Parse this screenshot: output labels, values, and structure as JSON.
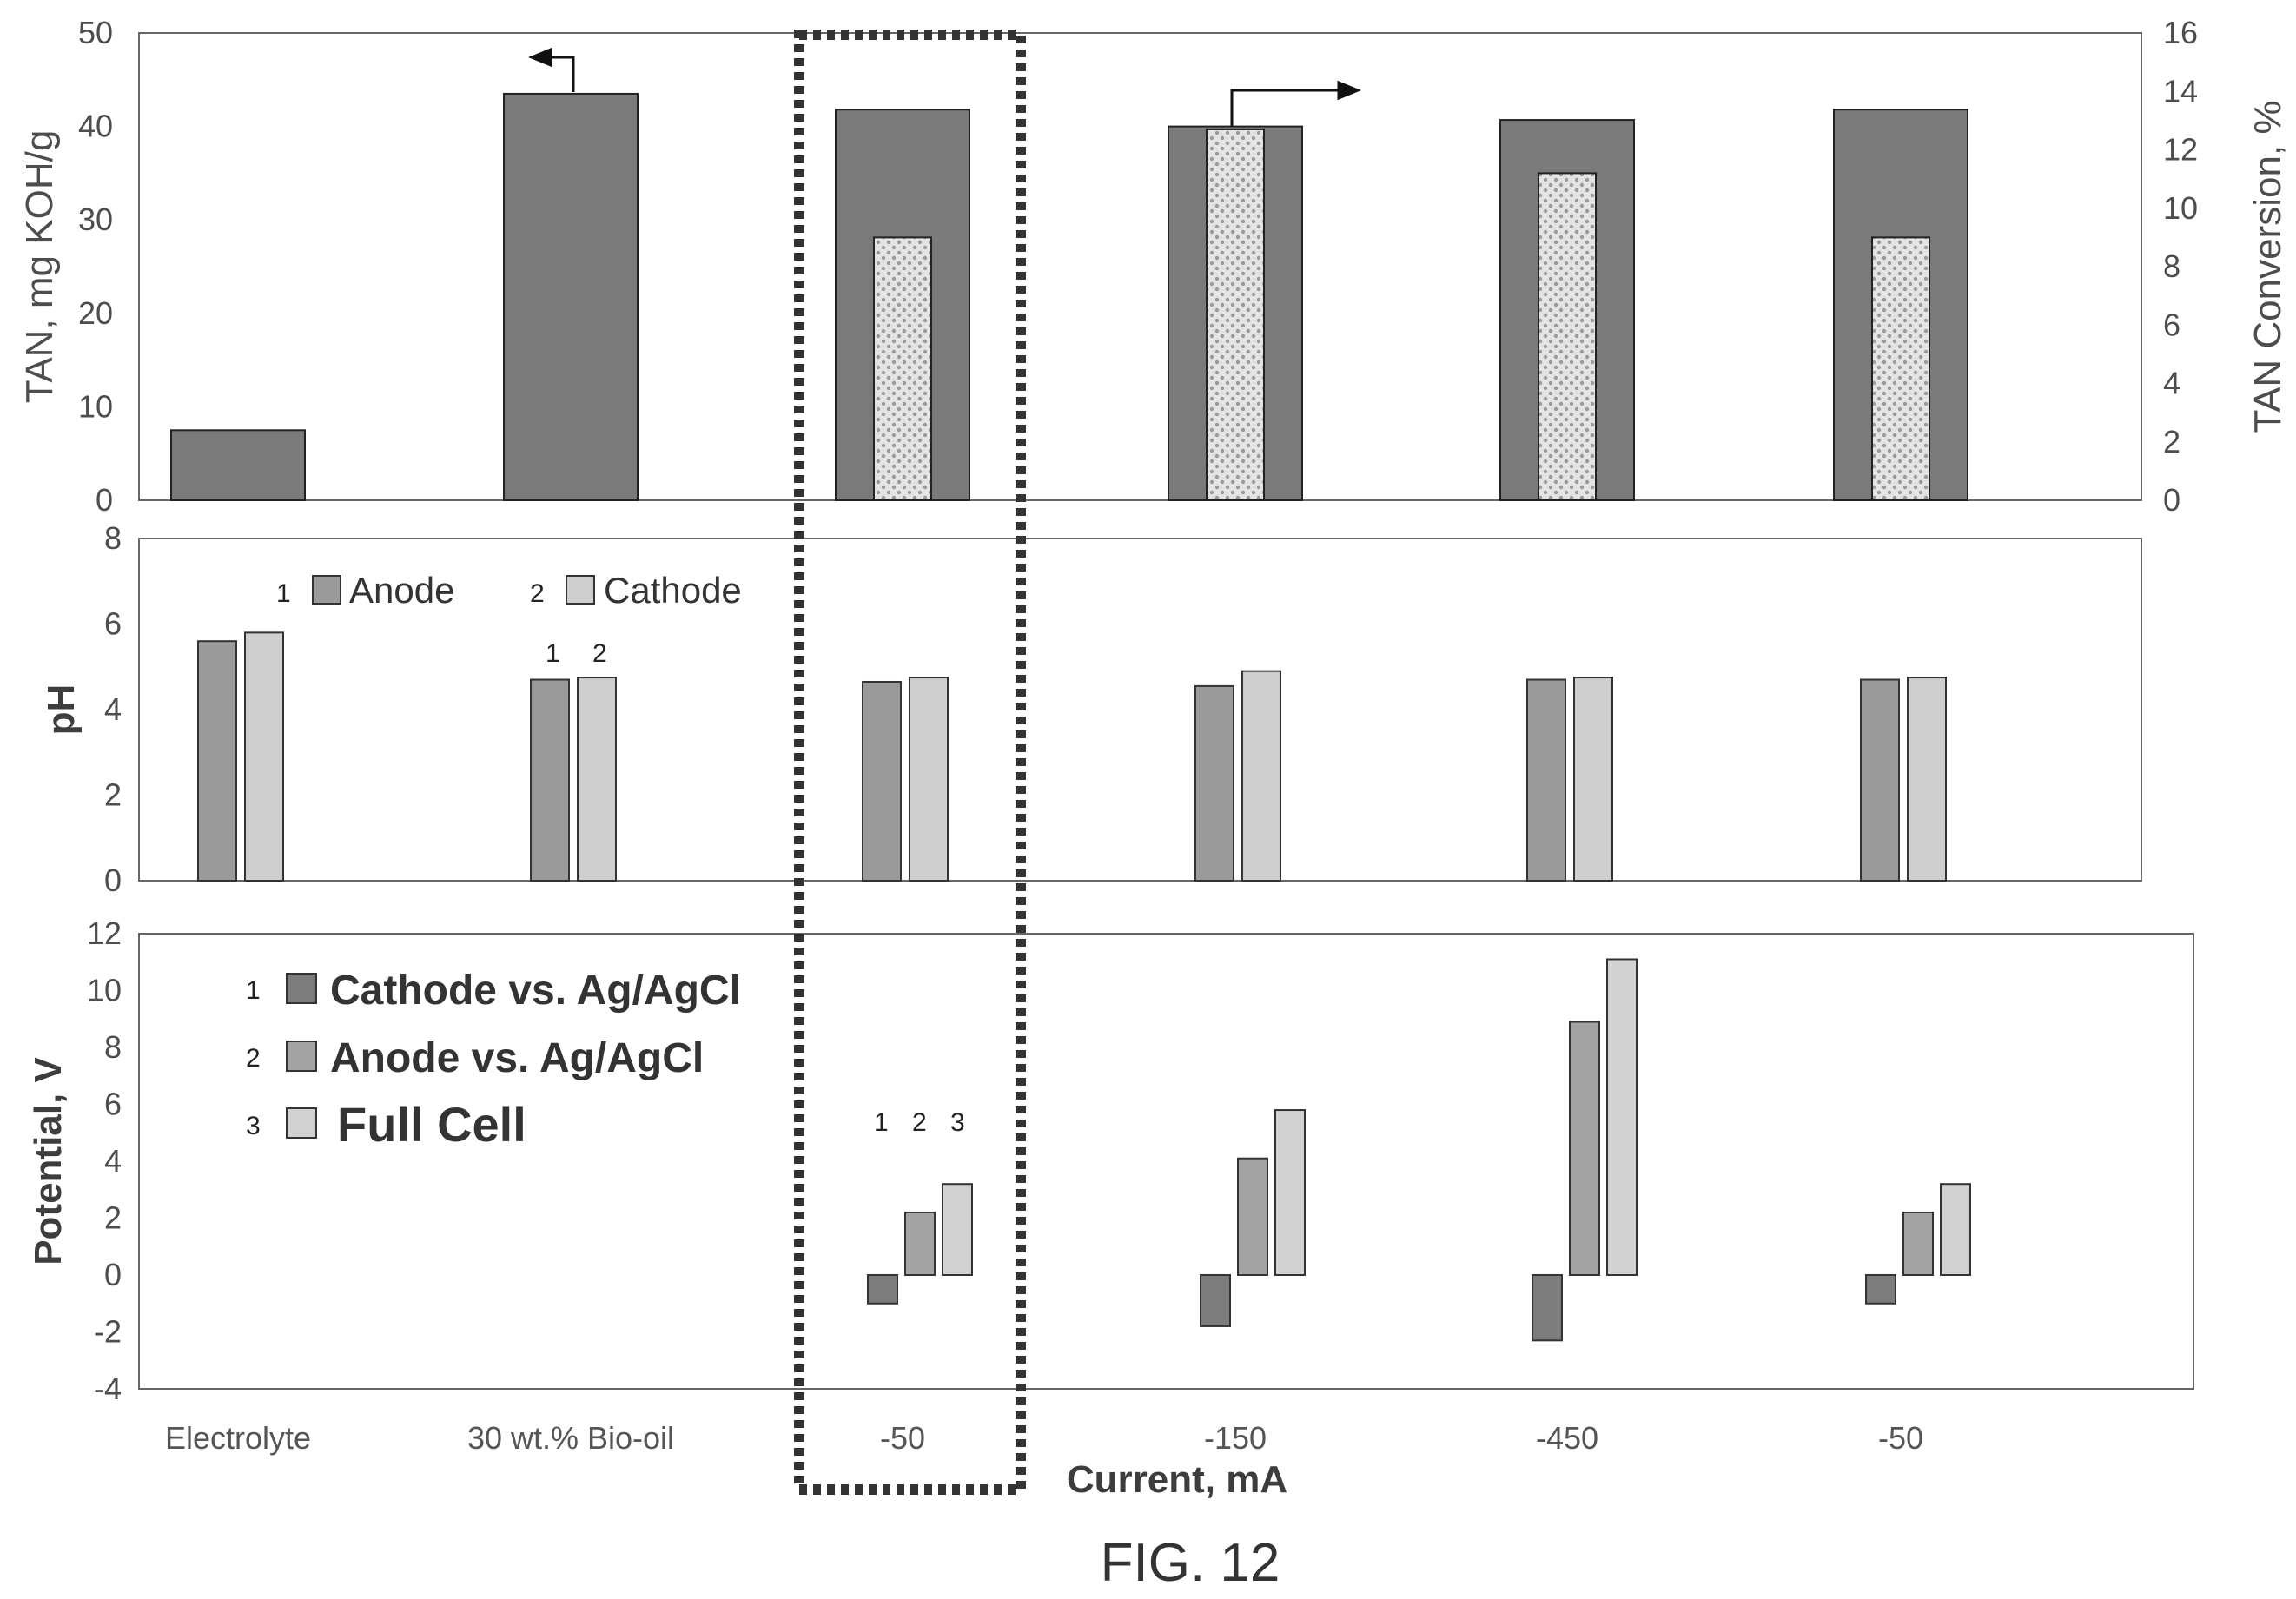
{
  "figure_caption": "FIG. 12",
  "x_axis_title": "Current, mA",
  "colors": {
    "tan_bar": "#7a7a7a",
    "conversion_bar": "#d9d9d9",
    "anode_ph": "#9a9a9a",
    "cathode_ph": "#cfcfcf",
    "cathode_potential": "#7c7c7c",
    "anode_potential": "#a3a3a3",
    "full_cell": "#d2d2d2",
    "dotted_box": "#333333"
  },
  "chart_data": [
    {
      "type": "bar",
      "panel": "top",
      "categories": [
        "Electrolyte",
        "30 wt.% Bio-oil",
        "-50",
        "-150",
        "-450",
        "-50"
      ],
      "ylabel": "TAN,  mg KOH/g",
      "ylabel_right": "TAN Conversion, %",
      "ylim": [
        0,
        50
      ],
      "ylim_right": [
        0,
        16
      ],
      "yticks": [
        "0",
        "10",
        "20",
        "30",
        "40",
        "50"
      ],
      "yticks_right": [
        "0",
        "2",
        "4",
        "6",
        "8",
        "10",
        "12",
        "14",
        "16"
      ],
      "series": [
        {
          "axis": "left",
          "values": [
            7.5,
            43.5,
            41.8,
            40.0,
            40.7,
            41.8
          ]
        },
        {
          "axis": "right",
          "values": [
            null,
            null,
            9.0,
            12.7,
            11.2,
            9.0
          ]
        }
      ]
    },
    {
      "type": "bar",
      "panel": "middle",
      "categories": [
        "Electrolyte",
        "30 wt.% Bio-oil",
        "-50",
        "-150",
        "-450",
        "-50"
      ],
      "ylabel": "pH",
      "ylim": [
        0,
        8
      ],
      "yticks": [
        "0",
        "2",
        "4",
        "6",
        "8"
      ],
      "legend": [
        "Anode",
        "Cathode"
      ],
      "legend_numbers": [
        "1",
        "2"
      ],
      "series": [
        {
          "name": "Anode",
          "values": [
            5.6,
            4.7,
            4.65,
            4.55,
            4.7,
            4.7
          ]
        },
        {
          "name": "Cathode",
          "values": [
            5.8,
            4.75,
            4.75,
            4.9,
            4.75,
            4.75
          ]
        }
      ]
    },
    {
      "type": "bar",
      "panel": "bottom",
      "categories": [
        "Electrolyte",
        "30 wt.% Bio-oil",
        "-50",
        "-150",
        "-450",
        "-50"
      ],
      "ylabel": "Potential, V",
      "ylim": [
        -4,
        12
      ],
      "yticks": [
        "-4",
        "-2",
        "0",
        "2",
        "4",
        "6",
        "8",
        "10",
        "12"
      ],
      "legend": [
        "Cathode vs. Ag/AgCl",
        "Anode vs. Ag/AgCl",
        "Full Cell"
      ],
      "legend_numbers": [
        "1",
        "2",
        "3"
      ],
      "series": [
        {
          "name": "Cathode vs. Ag/AgCl",
          "values": [
            null,
            null,
            -1.0,
            -1.8,
            -2.3,
            -1.0
          ]
        },
        {
          "name": "Anode vs. Ag/AgCl",
          "values": [
            null,
            null,
            2.2,
            4.1,
            8.9,
            2.2
          ]
        },
        {
          "name": "Full Cell",
          "values": [
            null,
            null,
            3.2,
            5.8,
            11.1,
            3.2
          ]
        }
      ]
    }
  ],
  "annotations": {
    "ph_bar_numbers": [
      "1",
      "2"
    ],
    "potential_bar_numbers": [
      "1",
      "2",
      "3"
    ]
  }
}
